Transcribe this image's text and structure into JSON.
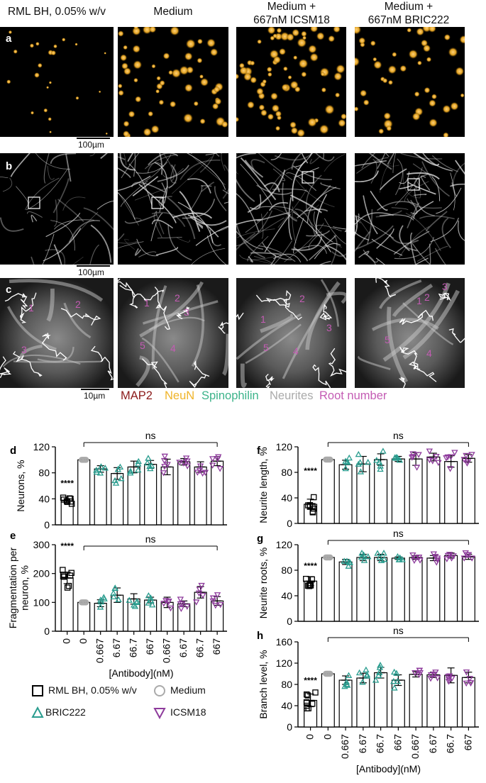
{
  "columns": [
    "RML BH, 0.05% w/v",
    "Medium",
    "Medium +\n667nM ICSM18",
    "Medium +\n667nM BRIC222"
  ],
  "panel_letters": {
    "a": "a",
    "b": "b",
    "c": "c"
  },
  "scalebars": {
    "a": "100µm",
    "b": "100µm",
    "c": "10µm"
  },
  "root_labels": [
    [
      "1",
      "2",
      "3"
    ],
    [
      "1",
      "2",
      "3",
      "5",
      "4"
    ],
    [
      "2",
      "1",
      "3",
      "5",
      "4"
    ],
    [
      "1",
      "3",
      "2",
      "5",
      "4"
    ]
  ],
  "stain_legend": [
    {
      "label": "MAP2",
      "color": "#8b1a1a"
    },
    {
      "label": "NeuN",
      "color": "#f0b429"
    },
    {
      "label": "Spinophilin",
      "color": "#3cb38a"
    },
    {
      "label": "Neurites",
      "color": "#aaaaaa"
    },
    {
      "label": "Root number",
      "color": "#c45cb4"
    }
  ],
  "colors": {
    "rml": "#000000",
    "medium": "#aaaaaa",
    "bric": "#2a9d8f",
    "icsm": "#8e3b9c"
  },
  "legend": [
    {
      "label": "RML BH, 0.05% w/v",
      "marker": "square"
    },
    {
      "label": "Medium",
      "marker": "circle"
    },
    {
      "label": "BRIC222",
      "marker": "triangle-up"
    },
    {
      "label": "ICSM18",
      "marker": "triangle-down"
    }
  ],
  "chart_data": [
    {
      "panel": "d",
      "type": "bar",
      "ylabel": "Neurons, %",
      "ylim": [
        0,
        120
      ],
      "yticks": [
        0,
        40,
        80,
        120
      ],
      "sig": "****",
      "ns": "ns",
      "categories": [
        "0",
        "0",
        "0.667",
        "6.67",
        "66.7",
        "667",
        "0.667",
        "6.67",
        "66.7",
        "667"
      ],
      "values": [
        37,
        100,
        86,
        79,
        89,
        93,
        89,
        97,
        89,
        98
      ],
      "errors": [
        3,
        0,
        5,
        9,
        9,
        6,
        12,
        5,
        8,
        7
      ],
      "groups": [
        "RML BH",
        "Medium",
        "BRIC222",
        "BRIC222",
        "BRIC222",
        "BRIC222",
        "ICSM18",
        "ICSM18",
        "ICSM18",
        "ICSM18"
      ]
    },
    {
      "panel": "e",
      "type": "bar",
      "ylabel": "Fragmentation per neuron, %",
      "ylim": [
        0,
        300
      ],
      "yticks": [
        0,
        100,
        200,
        300
      ],
      "sig": "****",
      "ns": "ns",
      "categories": [
        "0",
        "0",
        "0.667",
        "6.67",
        "66.7",
        "667",
        "0.667",
        "6.67",
        "66.7",
        "667"
      ],
      "values": [
        185,
        100,
        97,
        125,
        112,
        108,
        100,
        95,
        135,
        105
      ],
      "errors": [
        20,
        0,
        12,
        25,
        18,
        10,
        18,
        10,
        20,
        15
      ],
      "groups": [
        "RML BH",
        "Medium",
        "BRIC222",
        "BRIC222",
        "BRIC222",
        "BRIC222",
        "ICSM18",
        "ICSM18",
        "ICSM18",
        "ICSM18"
      ]
    },
    {
      "panel": "f",
      "type": "bar",
      "ylabel": "Neurite length, %",
      "ylim": [
        0,
        120
      ],
      "yticks": [
        0,
        40,
        80,
        120
      ],
      "sig": "****",
      "ns": "ns",
      "categories": [
        "0",
        "0",
        "0.667",
        "6.67",
        "66.7",
        "667",
        "0.667",
        "6.67",
        "66.7",
        "667"
      ],
      "values": [
        30,
        100,
        92,
        93,
        100,
        101,
        101,
        104,
        97,
        102
      ],
      "errors": [
        8,
        0,
        7,
        12,
        9,
        4,
        10,
        6,
        9,
        6
      ],
      "groups": [
        "RML BH",
        "Medium",
        "BRIC222",
        "BRIC222",
        "BRIC222",
        "BRIC222",
        "ICSM18",
        "ICSM18",
        "ICSM18",
        "ICSM18"
      ]
    },
    {
      "panel": "g",
      "type": "bar",
      "ylabel": "Neurite roots, %",
      "ylim": [
        0,
        120
      ],
      "yticks": [
        0,
        40,
        80,
        120
      ],
      "sig": "****",
      "ns": "ns",
      "categories": [
        "0",
        "0",
        "0.667",
        "6.67",
        "66.7",
        "667",
        "0.667",
        "6.67",
        "66.7",
        "667"
      ],
      "values": [
        63,
        100,
        93,
        100,
        100,
        99,
        100,
        99,
        103,
        101
      ],
      "errors": [
        7,
        0,
        4,
        5,
        5,
        2,
        3,
        4,
        4,
        4
      ],
      "groups": [
        "RML BH",
        "Medium",
        "BRIC222",
        "BRIC222",
        "BRIC222",
        "BRIC222",
        "ICSM18",
        "ICSM18",
        "ICSM18",
        "ICSM18"
      ]
    },
    {
      "panel": "h",
      "type": "bar",
      "ylabel": "Branch level, %",
      "ylim": [
        0,
        160
      ],
      "yticks": [
        0,
        40,
        80,
        120,
        160
      ],
      "sig": "****",
      "ns": "ns",
      "categories": [
        "0",
        "0",
        "0.667",
        "6.67",
        "66.7",
        "667",
        "0.667",
        "6.67",
        "66.7",
        "667"
      ],
      "values": [
        50,
        100,
        88,
        92,
        102,
        88,
        99,
        98,
        97,
        93
      ],
      "errors": [
        12,
        0,
        8,
        9,
        10,
        10,
        5,
        5,
        14,
        10
      ],
      "groups": [
        "RML BH",
        "Medium",
        "BRIC222",
        "BRIC222",
        "BRIC222",
        "BRIC222",
        "ICSM18",
        "ICSM18",
        "ICSM18",
        "ICSM18"
      ]
    }
  ],
  "xlabel": "[Antibody](nM)"
}
